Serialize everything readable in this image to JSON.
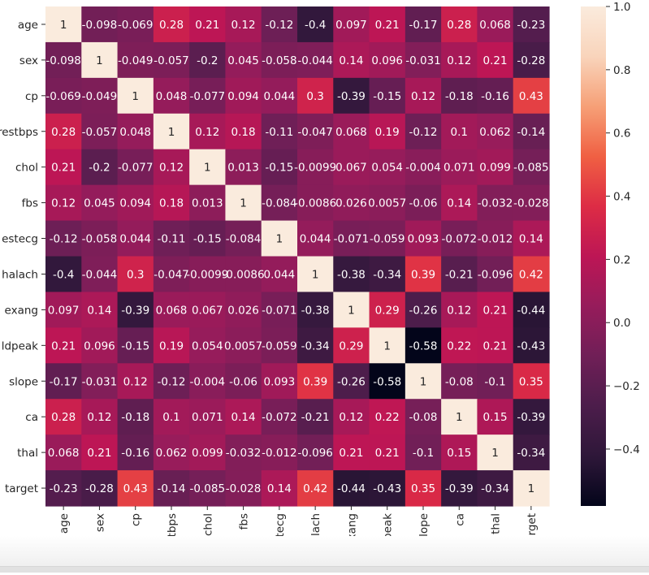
{
  "chart_data": {
    "type": "heatmap",
    "title": "",
    "xlabel": "",
    "ylabel": "",
    "annotated": true,
    "colormap": "rocket",
    "vmin": -0.58,
    "vmax": 1.0,
    "row_labels_visible": [
      "age",
      "sex",
      "cp",
      "restbps",
      "chol",
      "fbs",
      "estecg",
      "halach",
      "exang",
      "ldpeak",
      "slope",
      "ca",
      "thal",
      "target"
    ],
    "col_labels_visible": [
      "age",
      "sex",
      "cp",
      "trestbps",
      "chol",
      "fbs",
      "restecg",
      "thalach",
      "exang",
      "oldpeak",
      "slope",
      "ca",
      "thal",
      "arget"
    ],
    "variables": [
      "age",
      "sex",
      "cp",
      "trestbps",
      "chol",
      "fbs",
      "restecg",
      "thalach",
      "exang",
      "oldpeak",
      "slope",
      "ca",
      "thal",
      "target"
    ],
    "values": [
      [
        1,
        -0.098,
        -0.069,
        0.28,
        0.21,
        0.12,
        -0.12,
        -0.4,
        0.097,
        0.21,
        -0.17,
        0.28,
        0.068,
        -0.23
      ],
      [
        -0.098,
        1,
        -0.049,
        -0.057,
        -0.2,
        0.045,
        -0.058,
        -0.044,
        0.14,
        0.096,
        -0.031,
        0.12,
        0.21,
        -0.28
      ],
      [
        -0.069,
        -0.049,
        1,
        0.048,
        -0.077,
        0.094,
        0.044,
        0.3,
        -0.39,
        -0.15,
        0.12,
        -0.18,
        -0.16,
        0.43
      ],
      [
        0.28,
        -0.057,
        0.048,
        1,
        0.12,
        0.18,
        -0.11,
        -0.047,
        0.068,
        0.19,
        -0.12,
        0.1,
        0.062,
        -0.14
      ],
      [
        0.21,
        -0.2,
        -0.077,
        0.12,
        1,
        0.013,
        -0.15,
        -0.0099,
        0.067,
        0.054,
        -0.004,
        0.071,
        0.099,
        -0.085
      ],
      [
        0.12,
        0.045,
        0.094,
        0.18,
        0.013,
        1,
        -0.084,
        -0.0086,
        0.026,
        0.0057,
        -0.06,
        0.14,
        -0.032,
        -0.028
      ],
      [
        -0.12,
        -0.058,
        0.044,
        -0.11,
        -0.15,
        -0.084,
        1,
        0.044,
        -0.071,
        -0.059,
        0.093,
        -0.072,
        -0.012,
        0.14
      ],
      [
        -0.4,
        -0.044,
        0.3,
        -0.047,
        -0.0099,
        -0.0086,
        0.044,
        1,
        -0.38,
        -0.34,
        0.39,
        -0.21,
        -0.096,
        0.42
      ],
      [
        0.097,
        0.14,
        -0.39,
        0.068,
        0.067,
        0.026,
        -0.071,
        -0.38,
        1,
        0.29,
        -0.26,
        0.12,
        0.21,
        -0.44
      ],
      [
        0.21,
        0.096,
        -0.15,
        0.19,
        0.054,
        0.0057,
        -0.059,
        -0.34,
        0.29,
        1,
        -0.58,
        0.22,
        0.21,
        -0.43
      ],
      [
        -0.17,
        -0.031,
        0.12,
        -0.12,
        -0.004,
        -0.06,
        0.093,
        0.39,
        -0.26,
        -0.58,
        1,
        -0.08,
        -0.1,
        0.35
      ],
      [
        0.28,
        0.12,
        -0.18,
        0.1,
        0.071,
        0.14,
        -0.072,
        -0.21,
        0.12,
        0.22,
        -0.08,
        1,
        0.15,
        -0.39
      ],
      [
        0.068,
        0.21,
        -0.16,
        0.062,
        0.099,
        -0.032,
        -0.012,
        -0.096,
        0.21,
        0.21,
        -0.1,
        0.15,
        1,
        -0.34
      ],
      [
        -0.23,
        -0.28,
        0.43,
        -0.14,
        -0.085,
        -0.028,
        0.14,
        0.42,
        -0.44,
        -0.43,
        0.35,
        -0.39,
        -0.34,
        1
      ]
    ],
    "colorbar": {
      "ticks": [
        1.0,
        0.8,
        0.6,
        0.4,
        0.2,
        0.0,
        -0.2,
        -0.4
      ],
      "tick_labels": [
        "1.0",
        "0.8",
        "0.6",
        "0.4",
        "0.2",
        "0.0",
        "−0.2",
        "−0.4"
      ],
      "range": [
        -0.58,
        1.0
      ]
    },
    "colors": {
      "stops": [
        "#03051a",
        "#2e1739",
        "#4c1d4b",
        "#701f57",
        "#961c5b",
        "#bd1655",
        "#dd2c45",
        "#f06043",
        "#f6a077",
        "#f9d4bb",
        "#faebdd"
      ],
      "annotation_light": "#ffffff",
      "annotation_dark": "#262626",
      "tick_text": "#262626"
    },
    "grid": false,
    "legend": "right"
  }
}
